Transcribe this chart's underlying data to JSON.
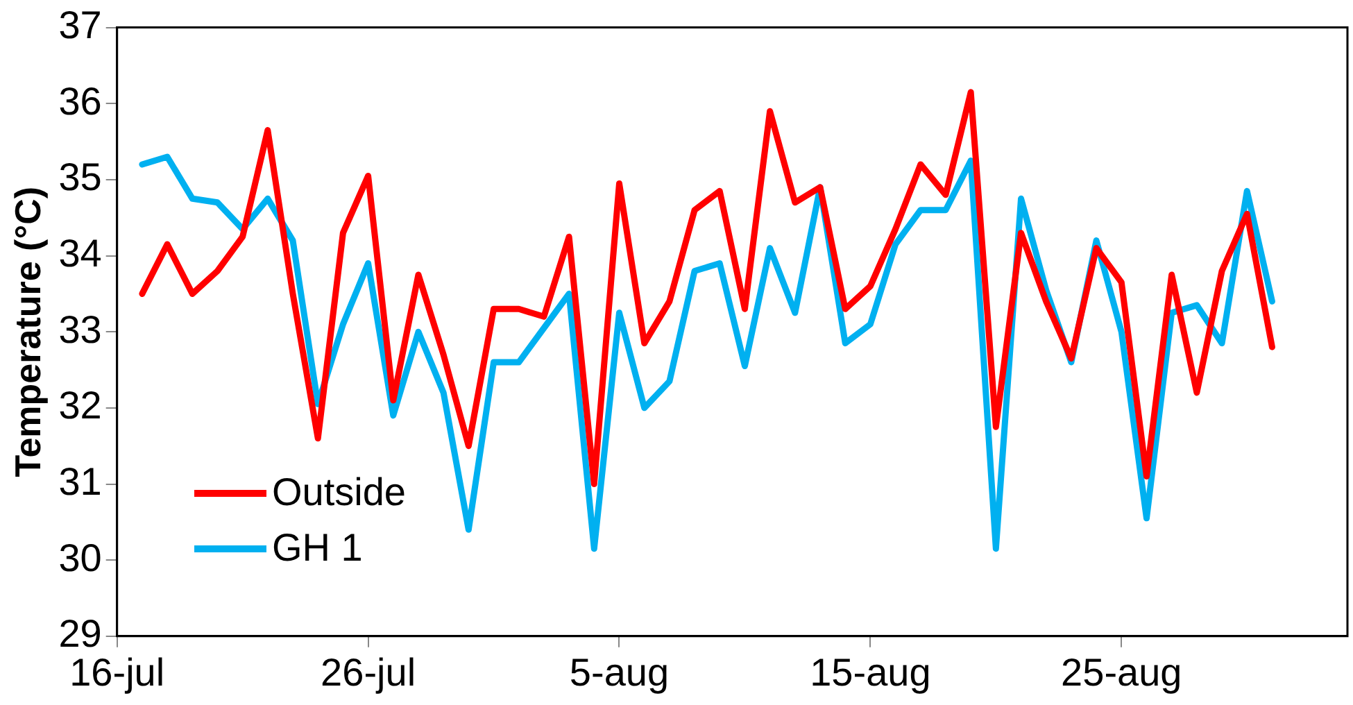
{
  "chart_data": {
    "type": "line",
    "ylabel": "Temperature (°C)",
    "x": [
      "--07-17",
      "--07-18",
      "--07-19",
      "--07-20",
      "--07-21",
      "--07-22",
      "--07-23",
      "--07-24",
      "--07-25",
      "--07-26",
      "--07-27",
      "--07-28",
      "--07-29",
      "--07-30",
      "--07-31",
      "--08-01",
      "--08-02",
      "--08-03",
      "--08-04",
      "--08-05",
      "--08-06",
      "--08-07",
      "--08-08",
      "--08-09",
      "--08-10",
      "--08-11",
      "--08-12",
      "--08-13",
      "--08-14",
      "--08-15",
      "--08-16",
      "--08-17",
      "--08-18",
      "--08-19",
      "--08-20",
      "--08-21",
      "--08-22",
      "--08-23",
      "--08-24",
      "--08-25",
      "--08-26",
      "--08-27",
      "--08-28",
      "--08-29",
      "--08-30",
      "--08-31"
    ],
    "series": [
      {
        "name": "Outside",
        "color": "#ff0000",
        "values": [
          33.5,
          34.15,
          33.5,
          33.8,
          34.25,
          35.65,
          33.5,
          31.6,
          34.3,
          35.05,
          32.1,
          33.75,
          32.7,
          31.5,
          33.3,
          33.3,
          33.2,
          34.25,
          31.0,
          34.95,
          32.85,
          33.4,
          34.6,
          34.85,
          33.3,
          35.9,
          34.7,
          34.9,
          33.3,
          33.6,
          34.35,
          35.2,
          34.8,
          36.15,
          31.75,
          34.3,
          33.4,
          32.65,
          34.1,
          33.65,
          31.1,
          33.75,
          32.2,
          33.8,
          34.55,
          32.8
        ]
      },
      {
        "name": "GH 1",
        "color": "#00b0f0",
        "values": [
          35.2,
          35.3,
          34.75,
          34.7,
          34.35,
          34.75,
          34.2,
          32.05,
          33.1,
          33.9,
          31.9,
          33.0,
          32.2,
          30.4,
          32.6,
          32.6,
          33.05,
          33.5,
          30.15,
          33.25,
          32.0,
          32.35,
          33.8,
          33.9,
          32.55,
          34.1,
          33.25,
          34.9,
          32.85,
          33.1,
          34.15,
          34.6,
          34.6,
          35.25,
          30.15,
          34.75,
          33.55,
          32.6,
          34.2,
          33.0,
          30.55,
          33.25,
          33.35,
          32.85,
          34.85,
          33.4
        ]
      }
    ],
    "xlim": [
      "--07-16",
      "--09-03"
    ],
    "xticks": [
      {
        "value": "--07-16",
        "label": "16-jul"
      },
      {
        "value": "--07-26",
        "label": "26-jul"
      },
      {
        "value": "--08-05",
        "label": "5-aug"
      },
      {
        "value": "--08-15",
        "label": "15-aug"
      },
      {
        "value": "--08-25",
        "label": "25-aug"
      }
    ],
    "ylim": [
      29,
      37
    ],
    "yticks": [
      29,
      30,
      31,
      32,
      33,
      34,
      35,
      36,
      37
    ],
    "grid": false,
    "legend": "bottom left",
    "marker": "none",
    "line_style": "solid"
  }
}
